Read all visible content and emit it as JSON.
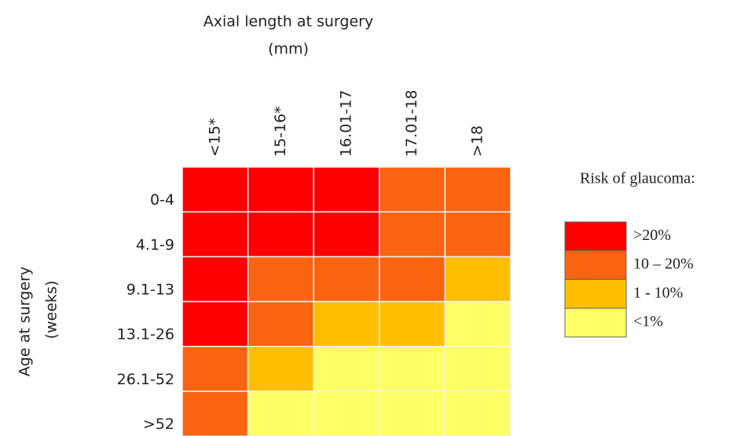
{
  "chart_data": {
    "type": "heatmap",
    "xlabel": [
      "Axial length at surgery",
      "(mm)"
    ],
    "ylabel": [
      "Age at surgery",
      "(weeks)"
    ],
    "x_categories": [
      "<15*",
      "15-16*",
      "16.01-17",
      "17.01-18",
      ">18"
    ],
    "y_categories": [
      "0-4",
      "4.1-9",
      "9.1-13",
      "13.1-26",
      "26.1-52",
      ">52"
    ],
    "legend_title": "Risk of glaucoma:",
    "levels": [
      {
        "label": ">20%",
        "color": "#ff0000"
      },
      {
        "label": "10 – 20%",
        "color": "#fa6410"
      },
      {
        "label": "1 - 10%",
        "color": "#ffbf00"
      },
      {
        "label": "<1%",
        "color": "#ffff66"
      }
    ],
    "cells": [
      [
        ">20%",
        ">20%",
        ">20%",
        "10 – 20%",
        "10 – 20%"
      ],
      [
        ">20%",
        ">20%",
        ">20%",
        "10 – 20%",
        "10 – 20%"
      ],
      [
        ">20%",
        "10 – 20%",
        "10 – 20%",
        "10 – 20%",
        "1 - 10%"
      ],
      [
        ">20%",
        "10 – 20%",
        "1 - 10%",
        "1 - 10%",
        "<1%"
      ],
      [
        "10 – 20%",
        "1 - 10%",
        "<1%",
        "<1%",
        "<1%"
      ],
      [
        "10 – 20%",
        "<1%",
        "<1%",
        "<1%",
        "<1%"
      ]
    ]
  }
}
